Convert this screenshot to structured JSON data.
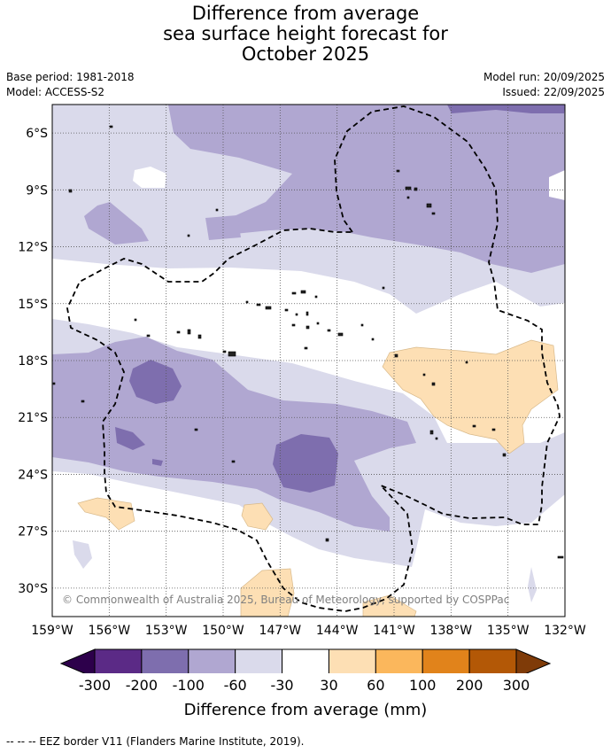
{
  "title": {
    "line1": "Difference from average",
    "line2": "sea surface height forecast for",
    "line3": "October 2025"
  },
  "meta_left": {
    "base_period": "Base period: 1981-2018",
    "model": "Model: ACCESS-S2"
  },
  "meta_right": {
    "model_run": "Model run: 20/09/2025",
    "issued": "Issued: 22/09/2025"
  },
  "map": {
    "lon_range": [
      -159,
      -132
    ],
    "lat_range": [
      -31.5,
      -4.5
    ],
    "lat_ticks": [
      {
        "value": -6,
        "label": "6°S"
      },
      {
        "value": -9,
        "label": "9°S"
      },
      {
        "value": -12,
        "label": "12°S"
      },
      {
        "value": -15,
        "label": "15°S"
      },
      {
        "value": -18,
        "label": "18°S"
      },
      {
        "value": -21,
        "label": "21°S"
      },
      {
        "value": -24,
        "label": "24°S"
      },
      {
        "value": -27,
        "label": "27°S"
      },
      {
        "value": -30,
        "label": "30°S"
      }
    ],
    "lon_ticks": [
      {
        "value": -159,
        "label": "159°W"
      },
      {
        "value": -156,
        "label": "156°W"
      },
      {
        "value": -153,
        "label": "153°W"
      },
      {
        "value": -150,
        "label": "150°W"
      },
      {
        "value": -147,
        "label": "147°W"
      },
      {
        "value": -144,
        "label": "144°W"
      },
      {
        "value": -141,
        "label": "141°W"
      },
      {
        "value": -138,
        "label": "138°W"
      },
      {
        "value": -135,
        "label": "135°W"
      },
      {
        "value": -132,
        "label": "132°W"
      }
    ],
    "copyright": "© Commonwealth of Australia 2025, Bureau of Meteorology, supported by COSPPac"
  },
  "colorbar": {
    "title": "Difference from average (mm)",
    "labels": [
      "-300",
      "-200",
      "-100",
      "-60",
      "-30",
      "30",
      "60",
      "100",
      "200",
      "300"
    ],
    "colors": [
      "#5b2a86",
      "#7e6eae",
      "#b0a7d1",
      "#dadaeb",
      "#ffffff",
      "#fddfb4",
      "#fbb75c",
      "#e1831b",
      "#b35806"
    ],
    "under_color": "#2d004b",
    "over_color": "#7f3b08"
  },
  "footnote": "--  --  -- EEZ border V11 (Flanders Marine Institute, 2019)."
}
